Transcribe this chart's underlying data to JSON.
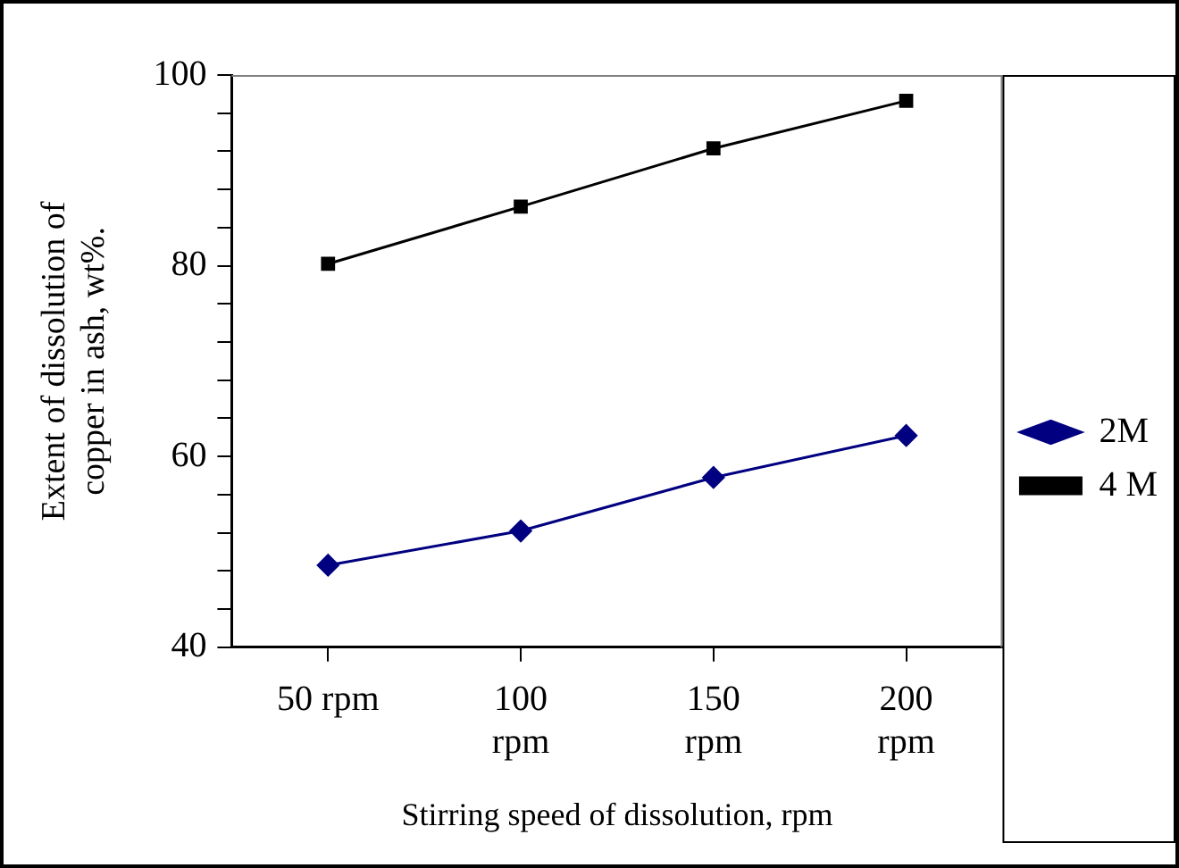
{
  "chart_data": {
    "type": "line",
    "xlabel": "Stirring speed of dissolution, rpm",
    "ylabel": "Extent of dissolution of copper in ash, wt%.",
    "categories": [
      "50 rpm",
      "100 rpm",
      "150 rpm",
      "200 rpm"
    ],
    "series": [
      {
        "name": "2M",
        "color": "#000080",
        "marker": "diamond",
        "values": [
          48.6,
          52.2,
          57.8,
          62.2
        ]
      },
      {
        "name": "4 M",
        "color": "#000000",
        "marker": "square",
        "values": [
          80.2,
          86.2,
          92.3,
          97.3
        ]
      }
    ],
    "ylim": [
      40,
      100
    ],
    "yticks": [
      40,
      {
        "value": 44,
        "label": null
      },
      {
        "value": 48,
        "label": null
      },
      {
        "value": 52,
        "label": null
      },
      {
        "value": 56,
        "label": null
      },
      60,
      {
        "value": 64,
        "label": null
      },
      {
        "value": 68,
        "label": null
      },
      {
        "value": 72,
        "label": null
      },
      {
        "value": 76,
        "label": null
      },
      80,
      {
        "value": 84,
        "label": null
      },
      {
        "value": 88,
        "label": null
      },
      {
        "value": 92,
        "label": null
      },
      {
        "value": 96,
        "label": null
      },
      100
    ],
    "grid": false,
    "legend": "right",
    "line_style": "solid"
  }
}
